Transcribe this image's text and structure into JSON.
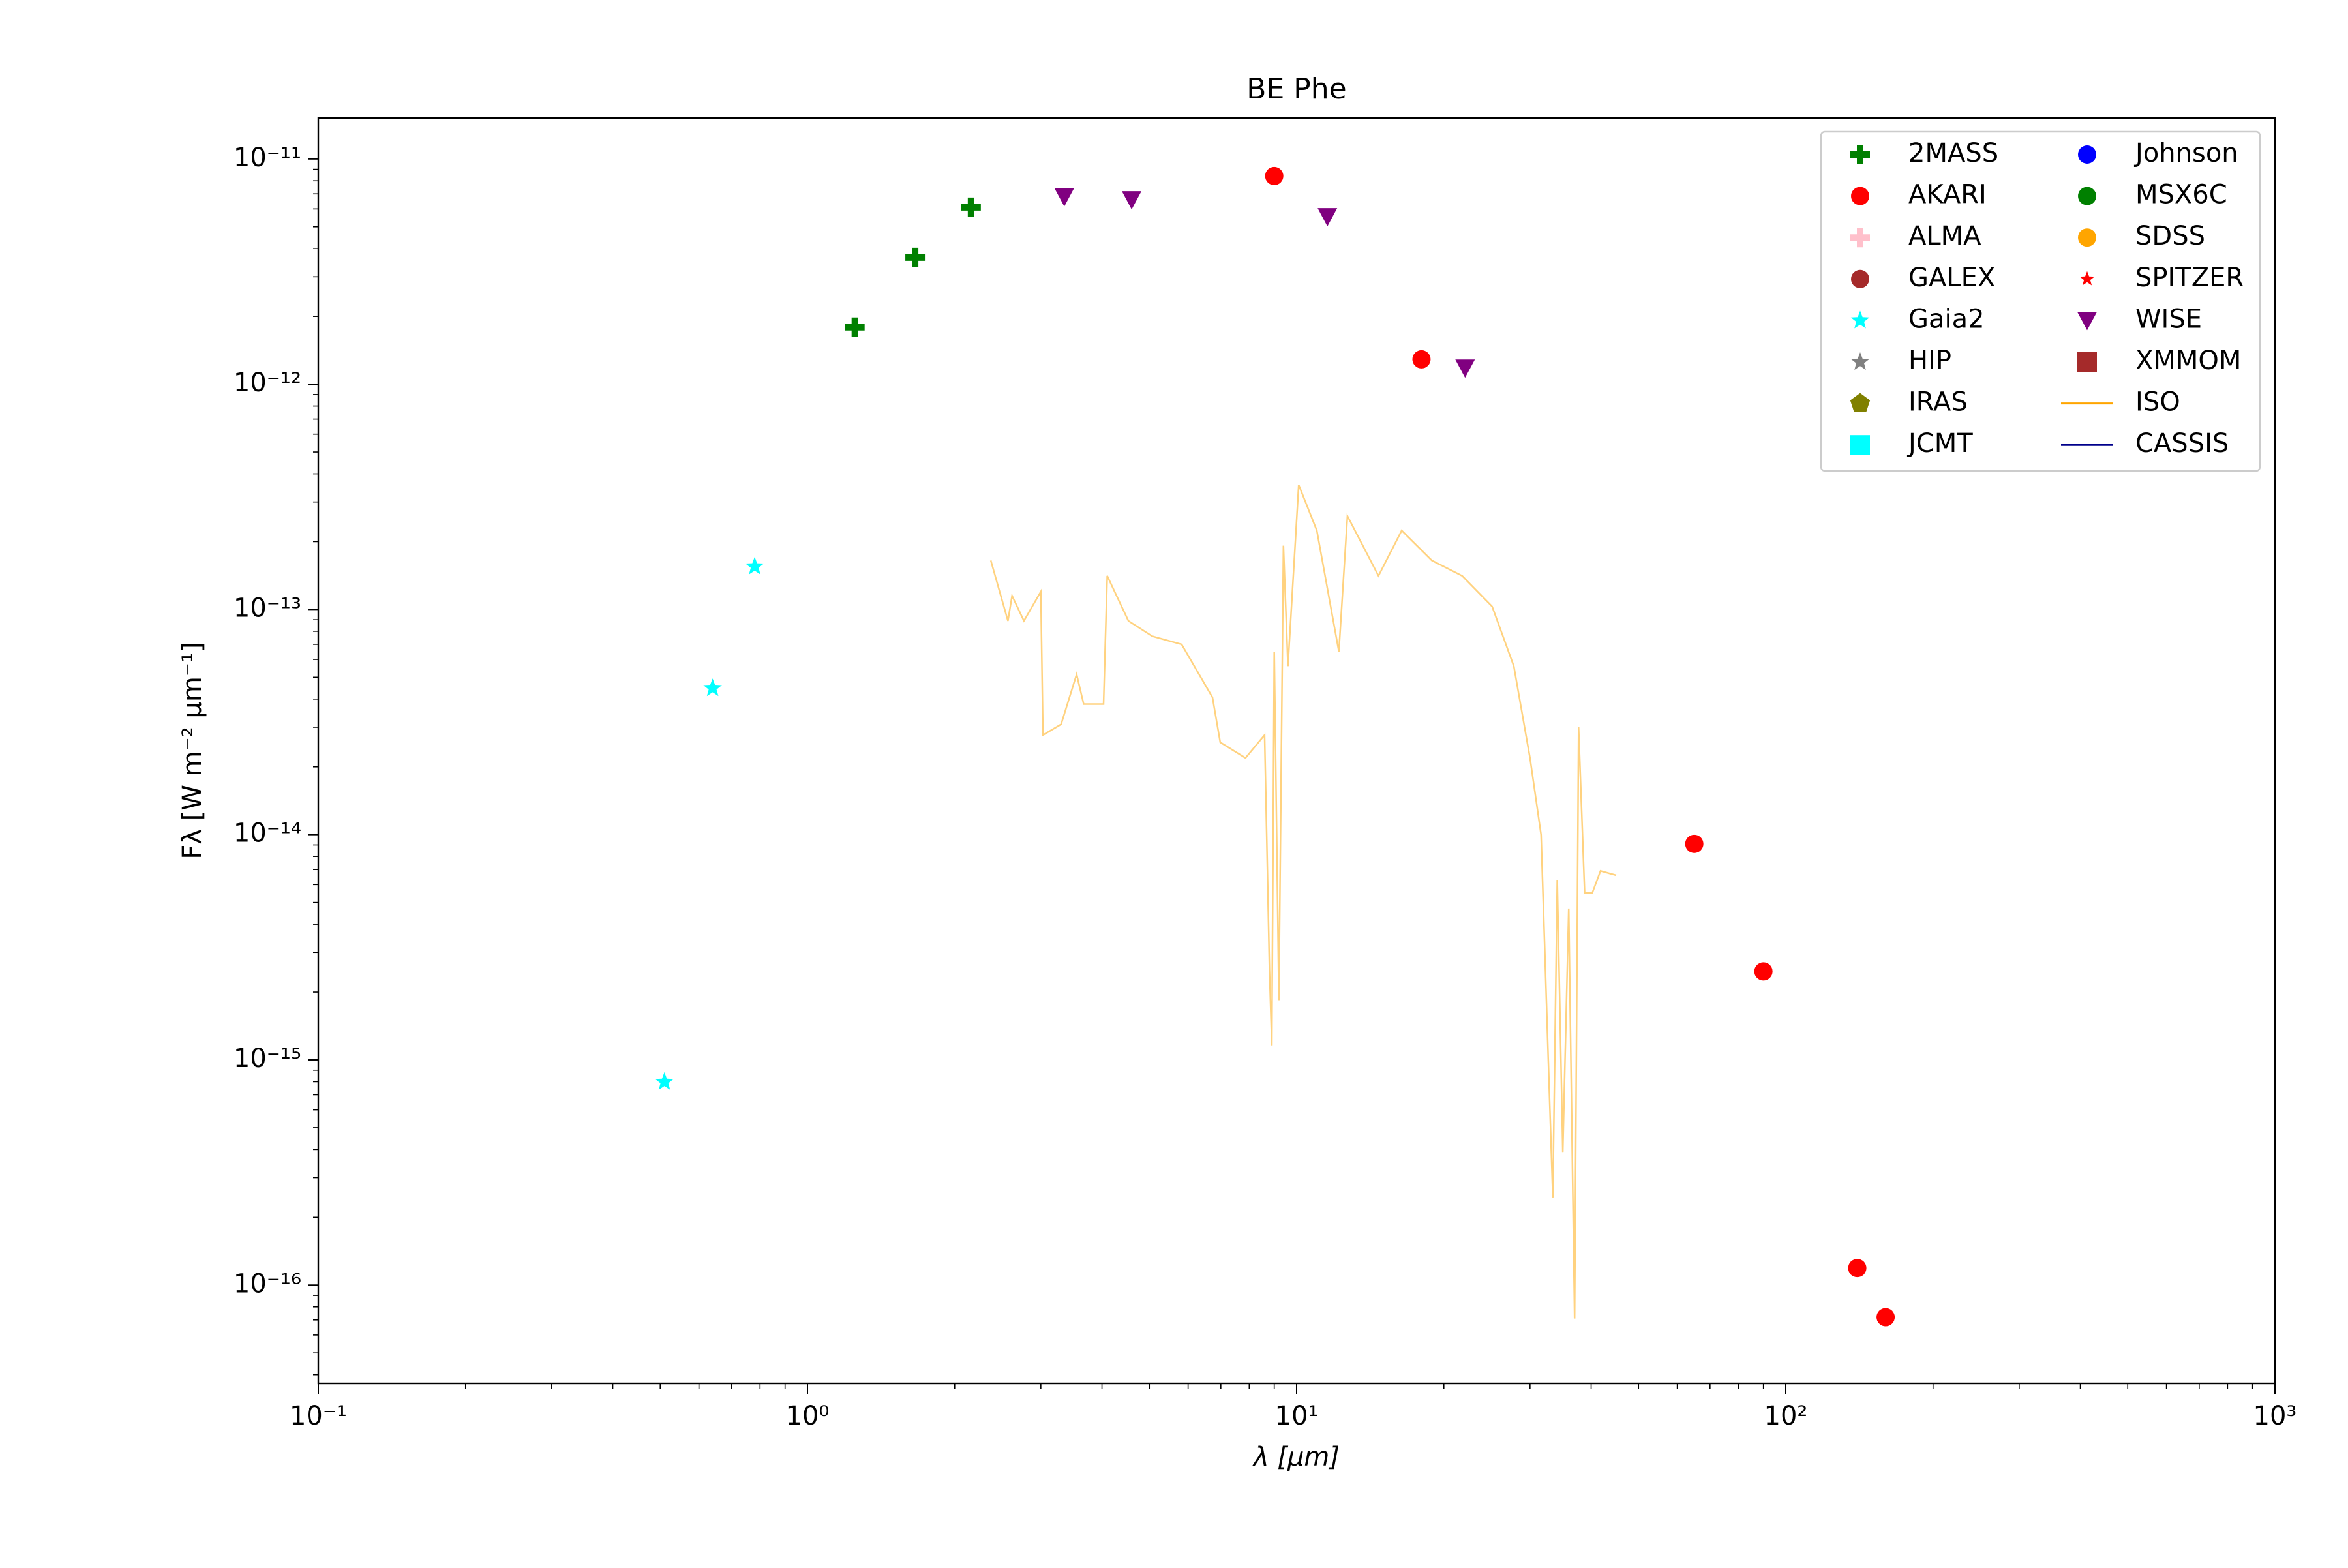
{
  "chart_data": {
    "type": "sed",
    "title": "BE Phe",
    "x_label": "λ [μm]",
    "y_label": "Fλ [W m⁻² μm⁻¹]",
    "xscale": "log",
    "yscale": "log",
    "minor_ticks": true,
    "xlim": [
      0.1,
      1000
    ],
    "ylim": [
      3.66e-17,
      1.52e-11
    ],
    "xticks": [
      {
        "value": 0.1,
        "label": "10⁻¹"
      },
      {
        "value": 1,
        "label": "10⁰"
      },
      {
        "value": 10,
        "label": "10¹"
      },
      {
        "value": 100,
        "label": "10²"
      },
      {
        "value": 1000,
        "label": "10³"
      }
    ],
    "yticks": [
      {
        "value": 1e-11,
        "label": "10⁻¹¹"
      },
      {
        "value": 1e-12,
        "label": "10⁻¹²"
      },
      {
        "value": 1e-13,
        "label": "10⁻¹³"
      },
      {
        "value": 1e-14,
        "label": "10⁻¹⁴"
      },
      {
        "value": 1e-15,
        "label": "10⁻¹⁵"
      },
      {
        "value": 1e-16,
        "label": "10⁻¹⁶"
      }
    ],
    "legend": "upper right",
    "legend_ncol": 2,
    "series": [
      {
        "name": "2MASS",
        "color": "#008000",
        "marker": "plus",
        "x": [
          1.25,
          1.66,
          2.16
        ],
        "values": [
          1.79e-12,
          3.65e-12,
          6.1e-12
        ]
      },
      {
        "name": "AKARI",
        "color": "#ff0000",
        "marker": "circle",
        "x": [
          9,
          18,
          65,
          90,
          140,
          160
        ],
        "values": [
          8.4e-12,
          1.29e-12,
          9.1e-15,
          2.47e-15,
          1.19e-16,
          7.2e-17
        ]
      },
      {
        "name": "ALMA",
        "color": "#ffc0cb",
        "marker": "plus",
        "x": [],
        "values": []
      },
      {
        "name": "GALEX",
        "color": "#a52a2a",
        "marker": "circle",
        "x": [],
        "values": []
      },
      {
        "name": "Gaia2",
        "color": "#00ffff",
        "marker": "star",
        "x": [
          0.51,
          0.64,
          0.78
        ],
        "values": [
          7.98e-16,
          4.47e-14,
          1.55e-13
        ]
      },
      {
        "name": "HIP",
        "color": "#808080",
        "marker": "star",
        "x": [],
        "values": []
      },
      {
        "name": "IRAS",
        "color": "#808000",
        "marker": "pentagon",
        "x": [],
        "values": []
      },
      {
        "name": "JCMT",
        "color": "#00ffff",
        "marker": "square",
        "x": [],
        "values": []
      },
      {
        "name": "Johnson",
        "color": "#0000ff",
        "marker": "circle",
        "x": [],
        "values": []
      },
      {
        "name": "MSX6C",
        "color": "#008000",
        "marker": "circle",
        "x": [],
        "values": []
      },
      {
        "name": "SDSS",
        "color": "#ffa500",
        "marker": "circle",
        "x": [],
        "values": []
      },
      {
        "name": "SPITZER",
        "color": "#ff0000",
        "marker": "smallstar",
        "x": [],
        "values": []
      },
      {
        "name": "WISE",
        "color": "#800080",
        "marker": "triangle_down",
        "x": [
          3.35,
          4.6,
          11.56,
          22.1
        ],
        "values": [
          6.8e-12,
          6.6e-12,
          5.55e-12,
          1.18e-12
        ]
      },
      {
        "name": "XMMOM",
        "color": "#a52a2a",
        "marker": "square",
        "x": [],
        "values": []
      },
      {
        "name": "ISO",
        "color": "#ffa500",
        "marker": "line",
        "alpha": 0.5,
        "x": [
          2.37,
          2.57,
          2.62,
          2.77,
          3.0,
          3.03,
          3.3,
          3.55,
          3.67,
          4.03,
          4.1,
          4.53,
          5.07,
          5.82,
          6.73,
          6.98,
          7.86,
          8.6,
          8.8,
          8.9,
          9.0,
          9.2,
          9.4,
          9.6,
          10.1,
          11.0,
          12.2,
          12.7,
          14.7,
          16.4,
          18.9,
          21.8,
          25.1,
          27.8,
          30.0,
          31.6,
          32.7,
          33.4,
          34.1,
          35.0,
          36.0,
          37.0,
          37.7,
          38.8,
          40.2,
          41.8,
          45
        ],
        "values": [
          1.65e-13,
          8.9e-14,
          1.15e-13,
          8.9e-14,
          1.2e-13,
          2.77e-14,
          3.09e-14,
          5.15e-14,
          3.8e-14,
          3.8e-14,
          1.41e-13,
          8.9e-14,
          7.6e-14,
          7e-14,
          4.07e-14,
          2.57e-14,
          2.19e-14,
          2.77e-14,
          2.5e-15,
          1.16e-15,
          6.5e-14,
          1.84e-15,
          1.92e-13,
          5.6e-14,
          3.57e-13,
          2.24e-13,
          6.5e-14,
          2.6e-13,
          1.41e-13,
          2.24e-13,
          1.65e-13,
          1.41e-13,
          1.03e-13,
          5.6e-14,
          2.19e-14,
          1e-14,
          9.9e-16,
          2.45e-16,
          6.3e-15,
          3.9e-16,
          4.7e-15,
          7.1e-17,
          3e-14,
          5.5e-15,
          5.5e-15,
          6.9e-15,
          6.6e-15
        ]
      },
      {
        "name": "CASSIS",
        "color": "#00008b",
        "marker": "line",
        "x": [],
        "values": []
      }
    ]
  }
}
